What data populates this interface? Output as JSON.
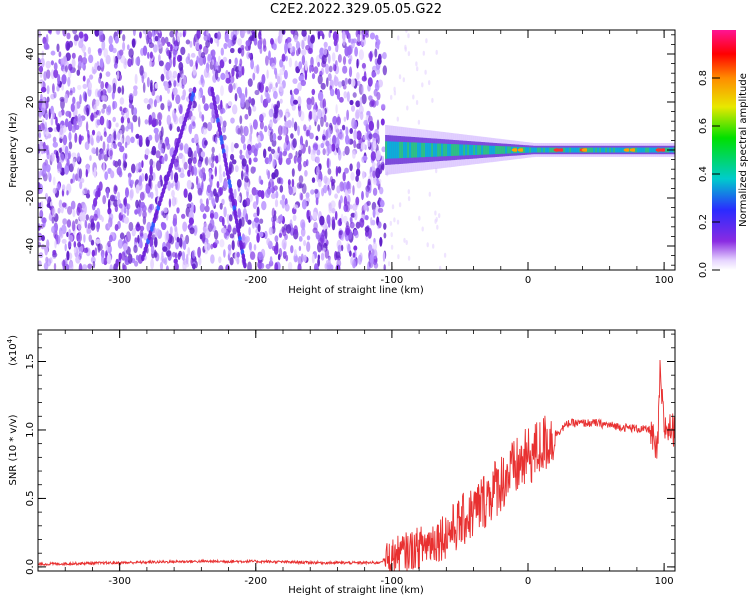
{
  "title": "C2E2.2022.329.05.05.G22",
  "chart_data": [
    {
      "type": "heatmap",
      "xlabel": "Height of straight line (km)",
      "ylabel": "Frequency (Hz)",
      "xlim": [
        -360,
        108
      ],
      "ylim": [
        -50,
        50
      ],
      "xticks": [
        -300,
        -200,
        -100,
        0,
        100
      ],
      "yticks": [
        -40,
        -20,
        0,
        20,
        40
      ],
      "colorbar": {
        "label": "Normalized spectral amplitude",
        "range": [
          0,
          1
        ],
        "ticks": [
          0.0,
          0.2,
          0.4,
          0.6,
          0.8
        ],
        "colormap": "rainbow (purple-blue-cyan-green-yellow-orange-red-magenta)"
      },
      "features": {
        "noise_region_x": [
          -360,
          -105
        ],
        "noise_color": "#7b2fe0",
        "signal_center_frequency": 0,
        "signal_start_x": -105,
        "diagonal_streaks": [
          {
            "x0": -283,
            "y0": -45,
            "x1": -245,
            "y1": 25
          },
          {
            "x0": -232,
            "y0": 25,
            "x1": -208,
            "y1": -48
          }
        ]
      }
    },
    {
      "type": "line",
      "xlabel": "Height of straight line (km)",
      "ylabel": "SNR (10 * v/v)",
      "yscale_label": "(x10^4)",
      "xlim": [
        -360,
        108
      ],
      "ylim": [
        -0.03,
        1.73
      ],
      "xticks": [
        -300,
        -200,
        -100,
        0,
        100
      ],
      "yticks": [
        0.0,
        0.5,
        1.0,
        1.5
      ],
      "color": "#e83030",
      "series": [
        {
          "x": [
            -360,
            -300,
            -250,
            -200,
            -150,
            -110,
            -100,
            -80,
            -60,
            -40,
            -20,
            0,
            10,
            20,
            30,
            50,
            70,
            90,
            95,
            97,
            100,
            108
          ],
          "y": [
            0.02,
            0.03,
            0.04,
            0.04,
            0.03,
            0.03,
            0.08,
            0.14,
            0.24,
            0.4,
            0.62,
            0.8,
            0.88,
            0.97,
            1.05,
            1.05,
            1.02,
            1.0,
            0.8,
            1.4,
            1.02,
            1.0
          ]
        }
      ]
    }
  ]
}
